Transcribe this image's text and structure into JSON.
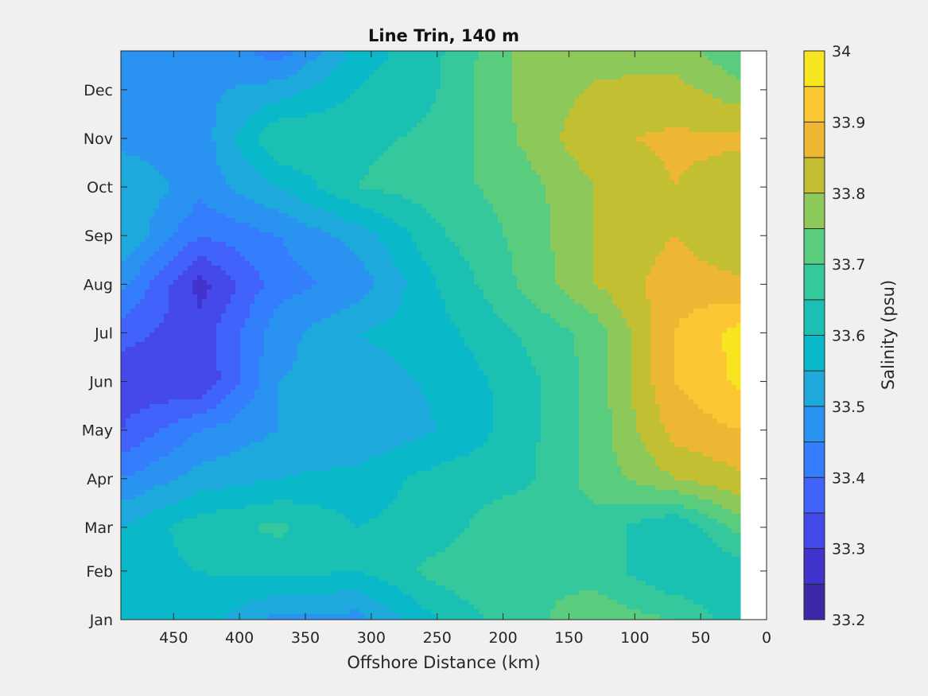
{
  "chart_data": {
    "type": "heatmap",
    "subtype": "filled-contour",
    "title": "Line Trin, 140 m",
    "xlabel": "Offshore Distance (km)",
    "ylabel": "",
    "colorbar_label": "Salinity (psu)",
    "x_reversed": true,
    "xlim": [
      490,
      0
    ],
    "xticks": [
      450,
      400,
      350,
      300,
      250,
      200,
      150,
      100,
      50,
      0
    ],
    "ylim": [
      0,
      11.7
    ],
    "yticks": [
      {
        "label": "Jan",
        "value": 0
      },
      {
        "label": "Feb",
        "value": 1
      },
      {
        "label": "Mar",
        "value": 1.9
      },
      {
        "label": "Apr",
        "value": 2.9
      },
      {
        "label": "May",
        "value": 3.9
      },
      {
        "label": "Jun",
        "value": 4.9
      },
      {
        "label": "Jul",
        "value": 5.9
      },
      {
        "label": "Aug",
        "value": 6.9
      },
      {
        "label": "Sep",
        "value": 7.9
      },
      {
        "label": "Oct",
        "value": 8.9
      },
      {
        "label": "Nov",
        "value": 9.9
      },
      {
        "label": "Dec",
        "value": 10.9
      }
    ],
    "data_x_range": [
      490,
      20
    ],
    "color_scale": {
      "min": 33.2,
      "max": 34.0,
      "step": 0.05,
      "ticks": [
        "33.2",
        "33.3",
        "33.4",
        "33.5",
        "33.6",
        "33.7",
        "33.8",
        "33.9",
        "34"
      ],
      "colors": [
        "#3e26a8",
        "#4133cc",
        "#4649ea",
        "#4163fb",
        "#347efe",
        "#2a93f1",
        "#1ea9dd",
        "#09b8c9",
        "#1ac1b3",
        "#34c89c",
        "#5acc7d",
        "#8dc95a",
        "#c2c032",
        "#edb734",
        "#fdc733",
        "#f6e51f"
      ]
    },
    "grid": {
      "x": [
        490,
        430,
        370,
        310,
        250,
        190,
        130,
        70,
        20
      ],
      "y": [
        0,
        1,
        1.9,
        2.9,
        3.9,
        4.9,
        5.9,
        6.9,
        7.9,
        8.9,
        9.9,
        11.7
      ],
      "z": [
        [
          33.58,
          33.58,
          33.48,
          33.48,
          33.6,
          33.68,
          33.73,
          33.7,
          33.62
        ],
        [
          33.58,
          33.6,
          33.62,
          33.6,
          33.67,
          33.7,
          33.68,
          33.6,
          33.62
        ],
        [
          33.55,
          33.63,
          33.66,
          33.6,
          33.62,
          33.7,
          33.68,
          33.6,
          33.72
        ],
        [
          33.45,
          33.52,
          33.55,
          33.57,
          33.62,
          33.63,
          33.72,
          33.8,
          33.84
        ],
        [
          33.35,
          33.45,
          33.5,
          33.5,
          33.55,
          33.62,
          33.72,
          33.87,
          33.9
        ],
        [
          33.32,
          33.3,
          33.5,
          33.52,
          33.56,
          33.62,
          33.72,
          33.9,
          33.96
        ],
        [
          33.37,
          33.32,
          33.48,
          33.55,
          33.58,
          33.65,
          33.72,
          33.9,
          33.97
        ],
        [
          33.47,
          33.28,
          33.43,
          33.47,
          33.6,
          33.7,
          33.8,
          33.88,
          33.86
        ],
        [
          33.55,
          33.4,
          33.45,
          33.52,
          33.64,
          33.71,
          33.8,
          33.85,
          33.8
        ],
        [
          33.55,
          33.47,
          33.55,
          33.65,
          33.68,
          33.72,
          33.8,
          33.85,
          33.82
        ],
        [
          33.48,
          33.47,
          33.65,
          33.64,
          33.66,
          33.75,
          33.84,
          33.86,
          33.86
        ],
        [
          33.48,
          33.5,
          33.42,
          33.57,
          33.64,
          33.76,
          33.78,
          33.78,
          33.7
        ]
      ]
    }
  }
}
